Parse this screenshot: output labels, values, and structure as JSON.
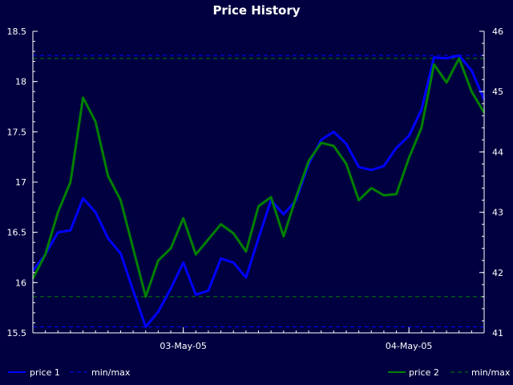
{
  "chart_data": {
    "type": "line",
    "title": "Price History",
    "x_tick_labels": [
      "03-May-05",
      "04-May-05"
    ],
    "x_count": 37,
    "x_tick_indices": [
      12,
      30
    ],
    "left_axis": {
      "ylim": [
        15.5,
        18.5
      ],
      "ticks": [
        15.5,
        16,
        16.5,
        17,
        17.5,
        18,
        18.5
      ],
      "tick_labels": [
        "15.5",
        "16",
        "16.5",
        "17",
        "17.5",
        "18",
        "18.5"
      ]
    },
    "right_axis": {
      "ylim": [
        41,
        46
      ],
      "ticks": [
        41,
        42,
        43,
        44,
        45,
        46
      ],
      "tick_labels": [
        "41",
        "42",
        "43",
        "44",
        "45",
        "46"
      ]
    },
    "series": [
      {
        "name": "price 1",
        "axis": "left",
        "color": "#0000ff",
        "values": [
          16.12,
          16.28,
          16.5,
          16.52,
          16.84,
          16.7,
          16.44,
          16.29,
          15.92,
          15.56,
          15.71,
          15.94,
          16.2,
          15.88,
          15.92,
          16.24,
          16.2,
          16.05,
          16.44,
          16.82,
          16.68,
          16.82,
          17.18,
          17.42,
          17.5,
          17.38,
          17.15,
          17.12,
          17.16,
          17.34,
          17.46,
          17.72,
          18.24,
          18.23,
          18.26,
          18.11,
          17.82
        ]
      },
      {
        "name": "price 2",
        "axis": "right",
        "color": "#008000",
        "values": [
          41.9,
          42.3,
          43.0,
          43.5,
          44.9,
          44.5,
          43.6,
          43.2,
          42.4,
          41.6,
          42.2,
          42.4,
          42.9,
          42.3,
          42.55,
          42.8,
          42.65,
          42.35,
          43.1,
          43.25,
          42.6,
          43.25,
          43.85,
          44.15,
          44.1,
          43.8,
          43.2,
          43.4,
          43.28,
          43.3,
          43.9,
          44.4,
          45.45,
          45.15,
          45.55,
          45.0,
          44.65
        ]
      }
    ],
    "reference_lines": [
      {
        "name": "min/max",
        "axis": "left",
        "color": "#0000ff",
        "values": [
          18.26,
          15.56
        ]
      },
      {
        "name": "min/max",
        "axis": "right",
        "color": "#008000",
        "values": [
          45.55,
          41.6
        ]
      }
    ],
    "legend": [
      {
        "label": "price 1",
        "style": "solid",
        "color": "#0000ff"
      },
      {
        "label": "min/max",
        "style": "dashed",
        "color": "#0000ff"
      },
      {
        "label": "price 2",
        "style": "solid",
        "color": "#008000"
      },
      {
        "label": "min/max",
        "style": "dashed",
        "color": "#008000"
      }
    ],
    "legend_placement": "bottom",
    "grid": false,
    "background_color": "#000040",
    "axis_color": "#ffffff"
  }
}
